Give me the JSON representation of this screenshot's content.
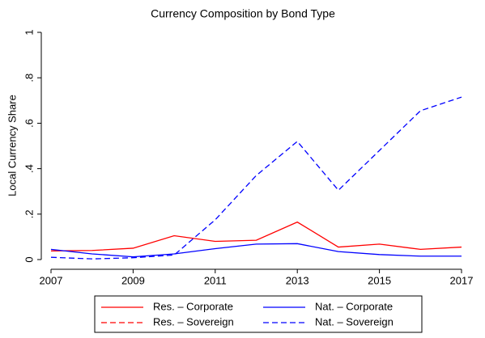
{
  "chart_data": {
    "type": "line",
    "title": "Currency Composition by Bond Type",
    "y_label": "Local Currency Share",
    "x": [
      2007,
      2008,
      2009,
      2010,
      2011,
      2012,
      2013,
      2014,
      2015,
      2016,
      2017
    ],
    "xlim": [
      2007,
      2017
    ],
    "xticks": [
      2007,
      2009,
      2011,
      2013,
      2015,
      2017
    ],
    "ylim": [
      0,
      1
    ],
    "yticks": [
      0,
      {
        "value": 0.2,
        "label": ".2"
      },
      {
        "value": 0.4,
        "label": ".4"
      },
      {
        "value": 0.6,
        "label": ".6"
      },
      {
        "value": 0.8,
        "label": ".8"
      },
      1
    ],
    "series": [
      {
        "name": "Res. – Corporate",
        "color": "#ff0000",
        "line_style": "solid",
        "values": [
          0.038,
          0.04,
          0.05,
          0.105,
          0.08,
          0.085,
          0.165,
          0.055,
          0.068,
          0.045,
          0.055
        ]
      },
      {
        "name": "Nat. – Corporate",
        "color": "#0000ff",
        "line_style": "solid",
        "values": [
          0.045,
          0.025,
          0.012,
          0.025,
          0.048,
          0.068,
          0.07,
          0.035,
          0.022,
          0.015,
          0.015
        ]
      },
      {
        "name": "Res. – Sovereign",
        "color": "#ff0000",
        "line_style": "dashed",
        "values": [
          null,
          null,
          null,
          null,
          null,
          null,
          null,
          null,
          null,
          null,
          null
        ]
      },
      {
        "name": "Nat. – Sovereign",
        "color": "#0000ff",
        "line_style": "dashed",
        "values": [
          0.01,
          0.003,
          0.008,
          0.02,
          0.175,
          0.37,
          0.52,
          0.305,
          0.48,
          0.655,
          0.715
        ]
      }
    ],
    "legend": "bottom"
  }
}
